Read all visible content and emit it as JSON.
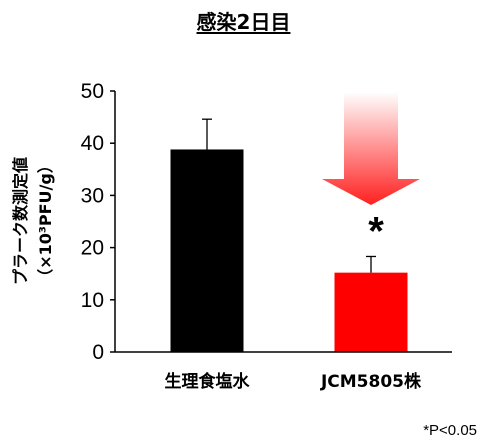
{
  "page": {
    "title": "感染2日目",
    "footnote": "*P<0.05"
  },
  "chart_data": {
    "type": "bar",
    "title": "感染2日目",
    "ylabel_line1": "プラーク数測定値",
    "ylabel_line2": "（×10³PFU/g）",
    "ylim": [
      0,
      50
    ],
    "yticks": [
      0,
      10,
      20,
      30,
      40,
      50
    ],
    "categories": [
      "生理食塩水",
      "JCM5805株"
    ],
    "values": [
      38.8,
      15.2
    ],
    "errors": [
      5.8,
      3.1
    ],
    "bar_colors": [
      "#000000",
      "#ff0000"
    ],
    "significance_marker": "*",
    "significance_category": 1,
    "arrow_color": "#ff2a2a",
    "grid": false,
    "legend": "none"
  }
}
